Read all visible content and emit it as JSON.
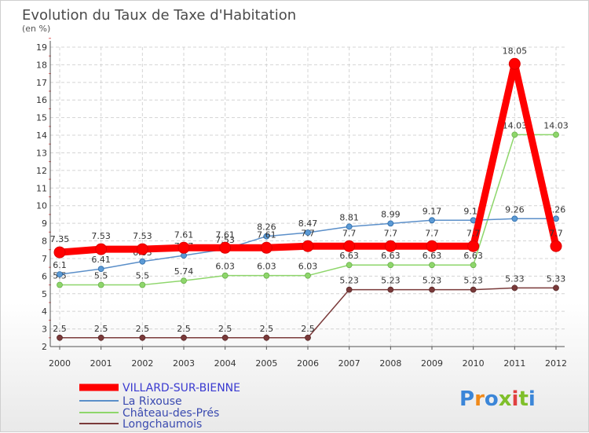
{
  "chart_data": {
    "type": "line",
    "title": "Evolution du Taux de Taxe d'Habitation",
    "subtitle": "(en %)",
    "xlabel": "",
    "ylabel": "",
    "categories": [
      "2000",
      "2001",
      "2002",
      "2003",
      "2004",
      "2005",
      "2006",
      "2007",
      "2008",
      "2009",
      "2010",
      "2011",
      "2012"
    ],
    "yticks": [
      "2",
      "3",
      "4",
      "5",
      "6",
      "7",
      "8",
      "9",
      "10",
      "11",
      "12",
      "13",
      "14",
      "15",
      "16",
      "17",
      "18",
      "19"
    ],
    "ylim": [
      2,
      19
    ],
    "grid": true,
    "legend_position": "bottom-left",
    "series": [
      {
        "name": "VILLARD-SUR-BIENNE",
        "color": "#ff0000",
        "values": [
          7.35,
          7.53,
          7.53,
          7.61,
          7.61,
          7.61,
          7.7,
          7.7,
          7.7,
          7.7,
          7.7,
          18.05,
          7.7
        ],
        "labels": [
          "7.35",
          "7.53",
          "7.53",
          "7.61",
          "7.61",
          "7.61",
          "7.7",
          "7.7",
          "7.7",
          "7.7",
          "7.7",
          "18.05",
          "7.7"
        ]
      },
      {
        "name": "La Rixouse",
        "color": "#5b8fc9",
        "values": [
          6.1,
          6.41,
          6.83,
          7.17,
          7.53,
          8.26,
          8.47,
          8.81,
          8.99,
          9.17,
          9.17,
          9.26,
          9.26
        ],
        "labels": [
          "6.1",
          "6.41",
          "6.83",
          "7.17",
          "7.53",
          "8.26",
          "8.47",
          "8.81",
          "8.99",
          "9.17",
          "9.17",
          "9.26",
          "9.26"
        ]
      },
      {
        "name": "Château-des-Prés",
        "color": "#8ed66b",
        "values": [
          5.5,
          5.5,
          5.5,
          5.74,
          6.03,
          6.03,
          6.03,
          6.63,
          6.63,
          6.63,
          6.63,
          14.03,
          14.03
        ],
        "labels": [
          "5.5",
          "5.5",
          "5.5",
          "5.74",
          "6.03",
          "6.03",
          "6.03",
          "6.63",
          "6.63",
          "6.63",
          "6.63",
          "14.03",
          "14.03"
        ]
      },
      {
        "name": "Longchaumois",
        "color": "#7a3a3a",
        "values": [
          2.5,
          2.5,
          2.5,
          2.5,
          2.5,
          2.5,
          2.5,
          5.23,
          5.23,
          5.23,
          5.23,
          5.33,
          5.33
        ],
        "labels": [
          "2.5",
          "2.5",
          "2.5",
          "2.5",
          "2.5",
          "2.5",
          "2.5",
          "5.23",
          "5.23",
          "5.23",
          "5.23",
          "5.33",
          "5.33"
        ]
      }
    ]
  },
  "logo": {
    "text": "Proxiti"
  }
}
